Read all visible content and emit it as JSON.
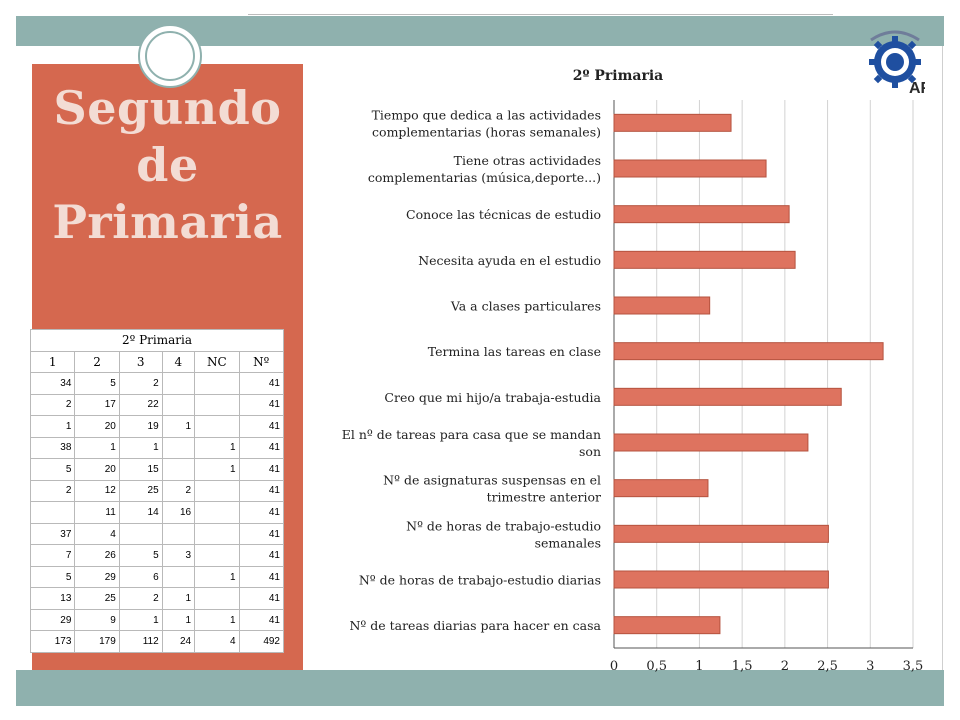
{
  "slide_title_lines": [
    "Segundo",
    "de",
    "Primaria"
  ],
  "logo_text": "AF",
  "table": {
    "title": "2º Primaria",
    "headers": [
      "1",
      "2",
      "3",
      "4",
      "NC",
      "Nº"
    ],
    "rows": [
      [
        "34",
        "5",
        "2",
        "",
        "",
        "41"
      ],
      [
        "2",
        "17",
        "22",
        "",
        "",
        "41"
      ],
      [
        "1",
        "20",
        "19",
        "1",
        "",
        "41"
      ],
      [
        "38",
        "1",
        "1",
        "",
        "1",
        "41"
      ],
      [
        "5",
        "20",
        "15",
        "",
        "1",
        "41"
      ],
      [
        "2",
        "12",
        "25",
        "2",
        "",
        "41"
      ],
      [
        "",
        "11",
        "14",
        "16",
        "",
        "41"
      ],
      [
        "37",
        "4",
        "",
        "",
        "",
        "41"
      ],
      [
        "7",
        "26",
        "5",
        "3",
        "",
        "41"
      ],
      [
        "5",
        "29",
        "6",
        "",
        "1",
        "41"
      ],
      [
        "13",
        "25",
        "2",
        "1",
        "",
        "41"
      ],
      [
        "29",
        "9",
        "1",
        "1",
        "1",
        "41"
      ],
      [
        "173",
        "179",
        "112",
        "24",
        "4",
        "492"
      ]
    ]
  },
  "colors": {
    "bar": "#de735f",
    "bar_edge": "#b5533f",
    "panel": "#d5684f",
    "band": "#8fb1ae"
  },
  "chart_data": {
    "type": "bar",
    "orientation": "horizontal",
    "title": "2º Primaria",
    "categories": [
      "Tiempo que dedica a las actividades complementarias (horas semanales)",
      "Tiene otras actividades complementarias (música,deporte...)",
      "Conoce las técnicas de estudio",
      "Necesita ayuda en el estudio",
      "Va a clases particulares",
      "Termina las tareas en clase",
      "Creo que mi hijo/a trabaja-estudia",
      "El nº de tareas para casa que se mandan son",
      "Nº de asignaturas suspensas en el trimestre anterior",
      "Nº de horas de trabajo-estudio semanales",
      "Nº de horas de trabajo-estudio diarias",
      "Nº de tareas diarias para hacer en casa"
    ],
    "category_lines": [
      [
        "Tiempo que dedica a las actividades",
        "complementarias (horas semanales)"
      ],
      [
        "Tiene otras actividades",
        "complementarias (música,deporte...)"
      ],
      [
        "Conoce las técnicas de estudio"
      ],
      [
        "Necesita ayuda en el estudio"
      ],
      [
        "Va a clases particulares"
      ],
      [
        "Termina las tareas en clase"
      ],
      [
        "Creo que mi hijo/a trabaja-estudia"
      ],
      [
        "El nº de tareas para casa que se mandan",
        "son"
      ],
      [
        "Nº de asignaturas suspensas en el",
        "trimestre anterior"
      ],
      [
        "Nº de horas de trabajo-estudio",
        "semanales"
      ],
      [
        "Nº de horas de trabajo-estudio diarias"
      ],
      [
        "Nº de tareas diarias para hacer en casa"
      ]
    ],
    "values": [
      1.37,
      1.78,
      2.05,
      2.12,
      1.12,
      3.15,
      2.66,
      2.27,
      1.1,
      2.51,
      2.51,
      1.24
    ],
    "xlim": [
      0,
      3.5
    ],
    "ticks": [
      "0",
      "0,5",
      "1",
      "1,5",
      "2",
      "2,5",
      "3",
      "3,5"
    ],
    "tick_values": [
      0,
      0.5,
      1,
      1.5,
      2,
      2.5,
      3,
      3.5
    ],
    "grid": true,
    "legend": "none"
  }
}
